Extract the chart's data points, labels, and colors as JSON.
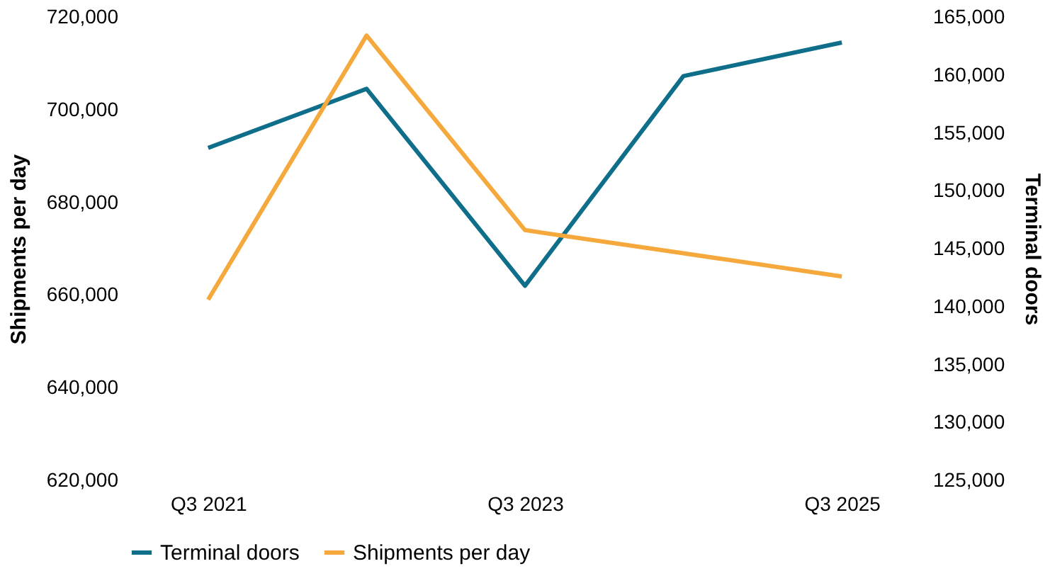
{
  "chart_data": {
    "type": "line",
    "categories": [
      "Q3 2021",
      null,
      "Q3 2023",
      null,
      "Q3 2025"
    ],
    "ylabel": "Shipments per day",
    "y2label": "Terminal doors",
    "ylim": [
      620000,
      720000
    ],
    "yticks": [
      {
        "value": 620000,
        "label": "620,000"
      },
      {
        "value": 640000,
        "label": "640,000"
      },
      {
        "value": 660000,
        "label": "660,000"
      },
      {
        "value": 680000,
        "label": "680,000"
      },
      {
        "value": 700000,
        "label": "700,000"
      },
      {
        "value": 720000,
        "label": "720,000"
      }
    ],
    "y2lim": [
      125000,
      165000
    ],
    "y2ticks": [
      {
        "value": 125000,
        "label": "125,000"
      },
      {
        "value": 130000,
        "label": "130,000"
      },
      {
        "value": 135000,
        "label": "135,000"
      },
      {
        "value": 140000,
        "label": "140,000"
      },
      {
        "value": 145000,
        "label": "145,000"
      },
      {
        "value": 150000,
        "label": "150,000"
      },
      {
        "value": 155000,
        "label": "155,000"
      },
      {
        "value": 160000,
        "label": "160,000"
      },
      {
        "value": 165000,
        "label": "165,000"
      }
    ],
    "series": [
      {
        "name": "Terminal doors",
        "color": "#0f6e8a",
        "axis": "y2",
        "values": [
          153700,
          158800,
          141800,
          159900,
          162800
        ]
      },
      {
        "name": "Shipments per day",
        "color": "#f5a83c",
        "axis": "y",
        "values": [
          659000,
          716000,
          674000,
          669000,
          664000
        ]
      }
    ],
    "legend": "bottom",
    "grid": false,
    "marker": "none",
    "line_style": "solid"
  }
}
